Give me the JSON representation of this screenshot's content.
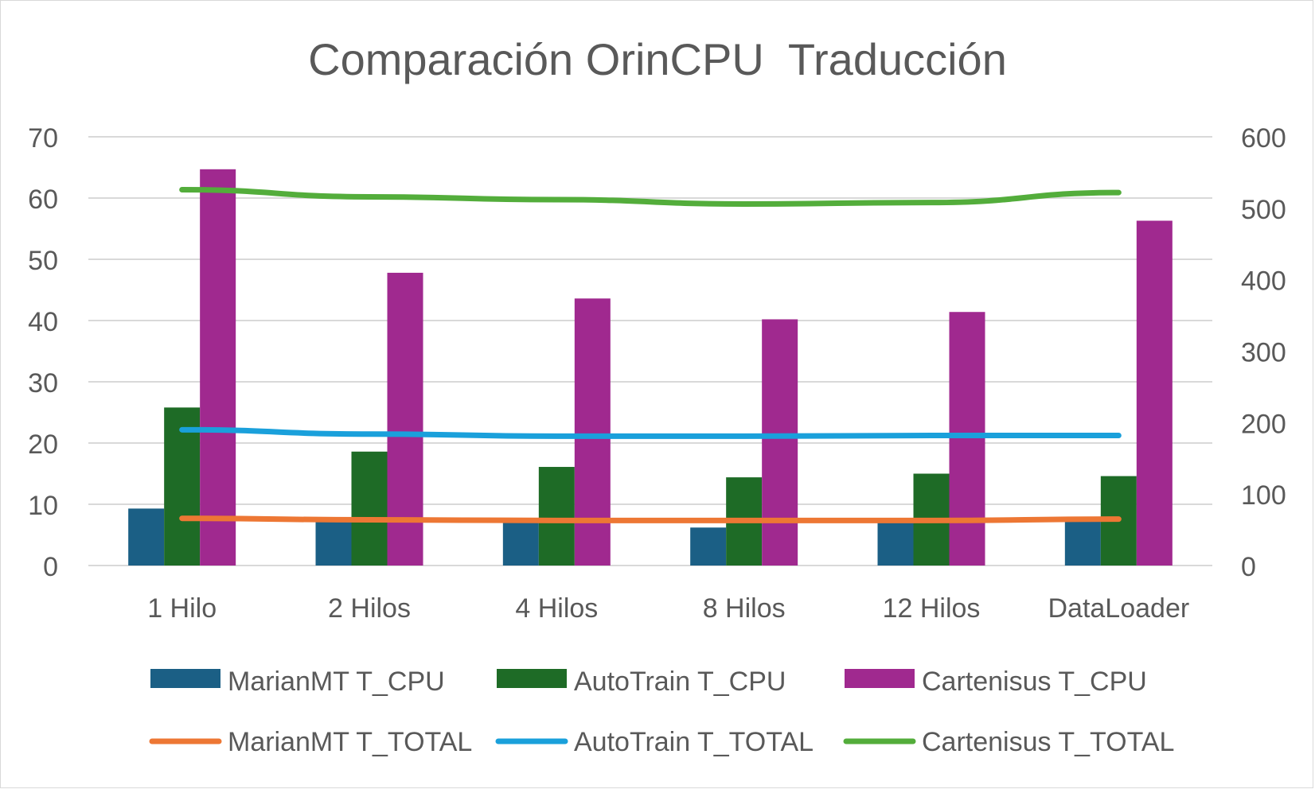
{
  "chart_data": {
    "type": "bar",
    "title": "Comparación OrinCPU  Traducción",
    "categories": [
      "1 Hilo",
      "2 Hilos",
      "4 Hilos",
      "8 Hilos",
      "12 Hilos",
      "DataLoader"
    ],
    "y_left": {
      "min": 0,
      "max": 70,
      "ticks": [
        0,
        10,
        20,
        30,
        40,
        50,
        60,
        70
      ]
    },
    "y_right": {
      "min": 0,
      "max": 600,
      "ticks": [
        0,
        100,
        200,
        300,
        400,
        500,
        600
      ]
    },
    "grid": true,
    "legend_position": "bottom",
    "bar_series": [
      {
        "name": "MarianMT T_CPU",
        "color": "#1b5f85",
        "axis": "left",
        "values": [
          9.3,
          7.4,
          7.3,
          6.2,
          7.4,
          7.6
        ]
      },
      {
        "name": "AutoTrain T_CPU",
        "color": "#1e6b26",
        "axis": "left",
        "values": [
          25.8,
          18.6,
          16.1,
          14.4,
          15.0,
          14.6
        ]
      },
      {
        "name": "Cartenisus T_CPU",
        "color": "#a0298f",
        "axis": "left",
        "values": [
          64.7,
          47.8,
          43.6,
          40.2,
          41.4,
          56.3
        ]
      }
    ],
    "line_series": [
      {
        "name": "MarianMT T_TOTAL",
        "color": "#ed7734",
        "axis": "right",
        "values": [
          66,
          64,
          63,
          63,
          63,
          65
        ]
      },
      {
        "name": "AutoTrain T_TOTAL",
        "color": "#1aa0db",
        "axis": "right",
        "values": [
          190,
          184,
          181,
          181,
          182,
          182
        ]
      },
      {
        "name": "Cartenisus T_TOTAL",
        "color": "#53ad3b",
        "axis": "right",
        "values": [
          526,
          516,
          512,
          506,
          508,
          522
        ]
      }
    ]
  }
}
